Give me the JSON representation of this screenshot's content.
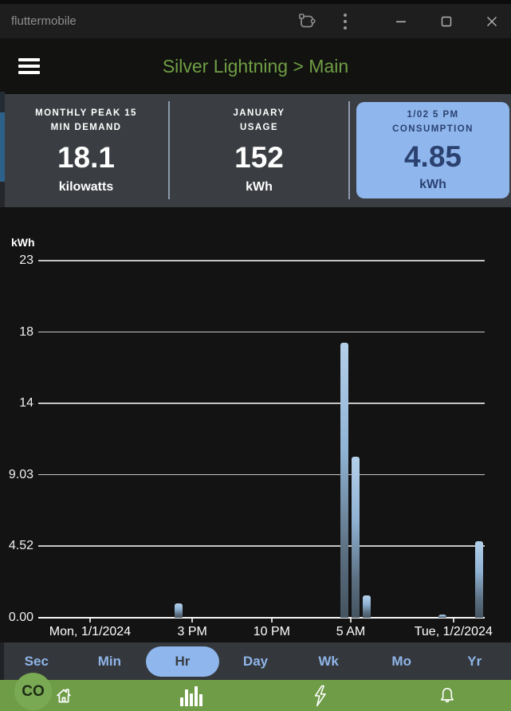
{
  "window": {
    "title": "fluttermobile"
  },
  "titlebar": {
    "buttons": [
      "device-frame",
      "menu-kebab",
      "minimize",
      "maximize",
      "close"
    ]
  },
  "header": {
    "title": "Silver Lightning > Main"
  },
  "stats": {
    "cards": [
      {
        "label_top": "MONTHLY PEAK 15",
        "label_bottom": "MIN DEMAND",
        "value": "18.1",
        "unit": "kilowatts",
        "highlighted": false
      },
      {
        "label_top": "JANUARY",
        "label_bottom": "USAGE",
        "value": "152",
        "unit": "kWh",
        "highlighted": false
      },
      {
        "label_top": "1/02 5 PM",
        "label_bottom": "CONSUMPTION",
        "value": "4.85",
        "unit": "kWh",
        "highlighted": true
      }
    ]
  },
  "chart_data": {
    "type": "bar",
    "ylabel": "kWh",
    "y_axis": {
      "max_value": 22.58,
      "gridlines": [
        {
          "label": "23",
          "value": 22.58
        },
        {
          "label": "18",
          "value": 18.06
        },
        {
          "label": "14",
          "value": 13.55
        },
        {
          "label": "9.03",
          "value": 9.03
        },
        {
          "label": "4.52",
          "value": 4.52
        },
        {
          "label": "0.00",
          "value": 0
        }
      ]
    },
    "x_ticks": [
      {
        "label": "Mon, 1/1/2024",
        "pos": 0.116
      },
      {
        "label": "3 PM",
        "pos": 0.345
      },
      {
        "label": "10 PM",
        "pos": 0.523
      },
      {
        "label": "5 AM",
        "pos": 0.7
      },
      {
        "label": "Tue, 1/2/2024",
        "pos": 0.93
      }
    ],
    "bars": [
      {
        "time": "Mon 1/1 2 PM",
        "value": 0.9,
        "pos": 0.314,
        "selected": false
      },
      {
        "time": "Tue 1/2 5 AM",
        "value": 17.4,
        "pos": 0.686,
        "selected": false
      },
      {
        "time": "Tue 1/2 6 AM",
        "value": 10.2,
        "pos": 0.711,
        "selected": false
      },
      {
        "time": "Tue 1/2 7 AM",
        "value": 1.4,
        "pos": 0.736,
        "selected": false
      },
      {
        "time": "Tue 1/2 2 PM",
        "value": 0.2,
        "pos": 0.905,
        "selected": false
      },
      {
        "time": "Tue 1/2 5 PM",
        "value": 4.85,
        "pos": 0.987,
        "selected": true
      }
    ]
  },
  "range_tabs": {
    "items": [
      "Sec",
      "Min",
      "Hr",
      "Day",
      "Wk",
      "Mo",
      "Yr"
    ],
    "selected": "Hr"
  },
  "bottom_nav": {
    "logo_text": "CO",
    "items": [
      "home",
      "usage-chart",
      "power",
      "alerts"
    ]
  },
  "colors": {
    "title_green": "#6f9e44",
    "nav_green": "#6e9c47",
    "logo_green": "#7aa953",
    "highlight_blue": "#8fb7ed",
    "card_text_navy": "#2b4170",
    "tab_label_blue": "#8fb5e8",
    "stats_bg": "#3a3d41",
    "tab_bar_bg": "#34373c",
    "chart_bg": "#131313",
    "bar_gradient_top": "#b4d0ea",
    "bar_gradient_bottom": "#44535f"
  }
}
